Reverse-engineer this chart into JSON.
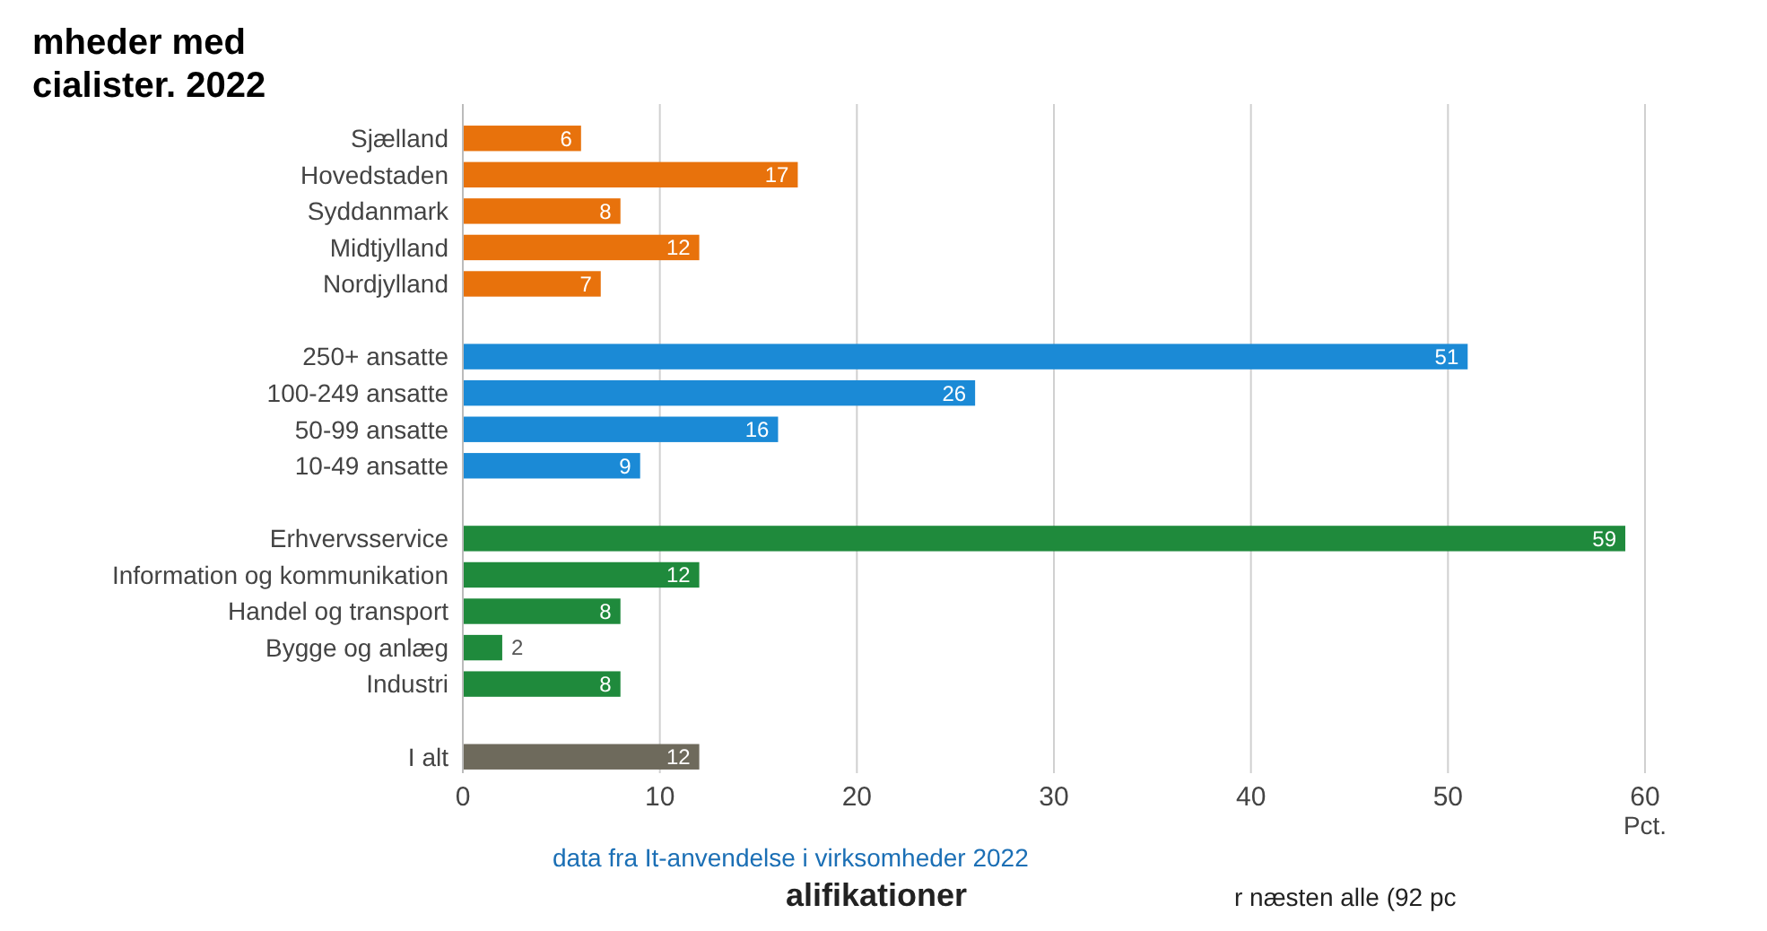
{
  "chart_data": {
    "type": "bar",
    "orientation": "horizontal",
    "title": "mheder med",
    "subtitle": "cialister. 2022",
    "categories": [
      "Sjælland",
      "Hovedstaden",
      "Syddanmark",
      "Midtjylland",
      "Nordjylland",
      null,
      "250+ ansatte",
      "100-249 ansatte",
      "50-99 ansatte",
      "10-49 ansatte",
      null,
      "Erhvervsservice",
      "Information og kommunikation",
      "Handel og transport",
      "Bygge og anlæg",
      "Industri",
      null,
      "I alt"
    ],
    "values": [
      6,
      17,
      8,
      12,
      7,
      null,
      51,
      26,
      16,
      9,
      null,
      59,
      12,
      8,
      2,
      8,
      null,
      12
    ],
    "colors": [
      "#e8720c",
      "#e8720c",
      "#e8720c",
      "#e8720c",
      "#e8720c",
      null,
      "#1b8ad6",
      "#1b8ad6",
      "#1b8ad6",
      "#1b8ad6",
      null,
      "#1f8a3c",
      "#1f8a3c",
      "#1f8a3c",
      "#1f8a3c",
      "#1f8a3c",
      null,
      "#6e6a5c"
    ],
    "xlim": [
      0,
      60
    ],
    "xticks": [
      0,
      10,
      20,
      30,
      40,
      50,
      60
    ],
    "xlabel": "Pct.",
    "grid": "x",
    "data_labels": true,
    "annotations": [
      "data fra It-anvendelse i virksomheder 2022",
      "alifikationer",
      "r næsten alle (92 pc"
    ]
  }
}
